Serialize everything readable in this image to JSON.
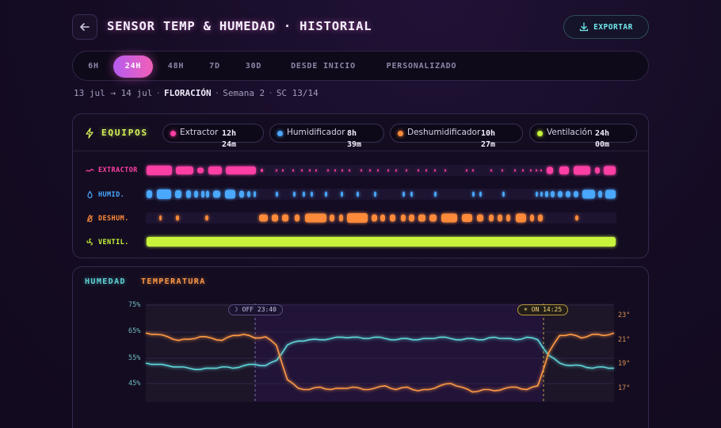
{
  "header": {
    "title": "SENSOR TEMP & HUMEDAD · HISTORIAL",
    "export_label": "EXPORTAR",
    "back_icon": "arrow-left-icon",
    "export_icon": "download-icon"
  },
  "range_tabs": [
    {
      "label": "6H",
      "active": false
    },
    {
      "label": "24H",
      "active": true
    },
    {
      "label": "48H",
      "active": false
    },
    {
      "label": "7D",
      "active": false
    },
    {
      "label": "30D",
      "active": false
    },
    {
      "label": "DESDE INICIO",
      "active": false
    },
    {
      "label": "PERSONALIZADO",
      "active": false
    }
  ],
  "subinfo": {
    "date_range": "13 jul → 14 jul",
    "stage": "FLORACIÓN",
    "week": "Semana 2",
    "sc": "SC 13/14"
  },
  "equipment": {
    "title": "EQUIPOS",
    "chips": [
      {
        "label": "Extractor",
        "value_line1": "12h",
        "value_line2": "24m",
        "color": "#ff3fa4"
      },
      {
        "label": "Humidificador",
        "value_line1": "8h",
        "value_line2": "39m",
        "color": "#4aa8ff"
      },
      {
        "label": "Deshumidificador",
        "value_line1": "10h",
        "value_line2": "27m",
        "color": "#ff8a3a"
      },
      {
        "label": "Ventilación",
        "value_line1": "24h",
        "value_line2": "00m",
        "color": "#c8f53c"
      }
    ],
    "rows": [
      {
        "label": "EXTRACTOR",
        "color": "#ff3fa4",
        "icon": "wind-icon"
      },
      {
        "label": "HUMID.",
        "color": "#4aa8ff",
        "icon": "droplet-icon"
      },
      {
        "label": "DESHUM.",
        "color": "#ff8a3a",
        "icon": "drop-off-icon"
      },
      {
        "label": "VENTIL.",
        "color": "#c8f53c",
        "icon": "fan-icon"
      }
    ]
  },
  "chart": {
    "legend": [
      {
        "label": "HUMEDAD",
        "color": "#5fd6d8"
      },
      {
        "label": "TEMPERATURA",
        "color": "#ff9a45"
      }
    ],
    "markers": {
      "off_label": "☽ OFF 23:40",
      "on_label": "☀ ON 14:25"
    },
    "y_left_ticks": [
      "75%",
      "65%",
      "55%",
      "45%"
    ],
    "y_right_ticks": [
      "23°",
      "21°",
      "19°",
      "17°"
    ]
  },
  "chart_data": {
    "type": "line",
    "x_start": "13 jul",
    "x_end": "14 jul",
    "lights_off": "23:40",
    "lights_on": "14:25",
    "series": [
      {
        "name": "HUMEDAD",
        "axis": "left",
        "unit": "%",
        "color": "#5fd6d8",
        "values": [
          55,
          54.5,
          54,
          53.5,
          53,
          52.5,
          53,
          53.5,
          53,
          54,
          54.5,
          54,
          56,
          62,
          63.5,
          64,
          64,
          64.5,
          65,
          65,
          64.5,
          65,
          64.5,
          64,
          64.5,
          64,
          64.5,
          65,
          64.5,
          64,
          64.5,
          64,
          65,
          64.5,
          64,
          65,
          64,
          58,
          55,
          54,
          54,
          53,
          53.5,
          53
        ]
      },
      {
        "name": "TEMPERATURA",
        "axis": "right",
        "unit": "°",
        "color": "#ff9a45",
        "values": [
          21.6,
          21.5,
          21.3,
          21.0,
          21.1,
          21.3,
          21.2,
          21.0,
          21.4,
          21.5,
          21.2,
          21.3,
          20.6,
          17.8,
          17.1,
          17.0,
          17.2,
          17.0,
          17.1,
          17.2,
          17.0,
          17.1,
          17.3,
          17.0,
          17.2,
          16.9,
          17.0,
          17.3,
          17.5,
          17.2,
          16.8,
          17.0,
          16.9,
          17.1,
          17.2,
          17.0,
          17.3,
          20.0,
          21.4,
          21.5,
          21.2,
          21.5,
          21.4,
          21.6
        ]
      }
    ],
    "y_left_range": [
      40,
      78
    ],
    "y_right_range": [
      16,
      24
    ]
  }
}
